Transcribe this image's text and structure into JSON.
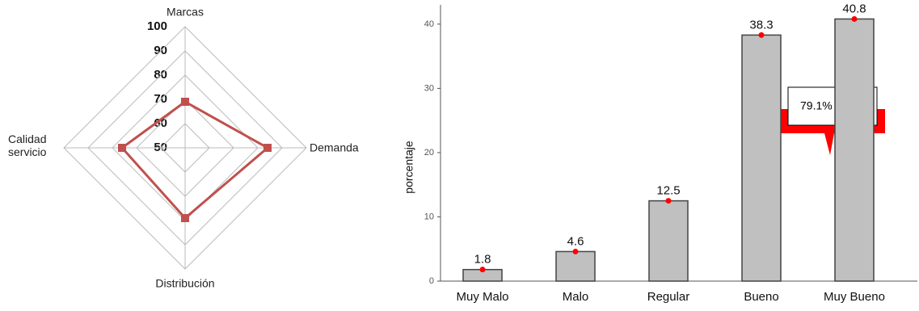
{
  "chart_data": [
    {
      "type": "radar",
      "categories": [
        "Marcas",
        "Demanda",
        "Distribución",
        "Calidad servicio"
      ],
      "values": [
        69,
        84,
        79,
        76
      ],
      "color": "#c0504d",
      "rlim": [
        50,
        100
      ],
      "rticks": [
        50,
        60,
        70,
        80,
        90,
        100
      ]
    },
    {
      "type": "bar",
      "categories": [
        "Muy Malo",
        "Malo",
        "Regular",
        "Bueno",
        "Muy Bueno"
      ],
      "values": [
        1.8,
        4.6,
        12.5,
        38.3,
        40.8
      ],
      "color": "#c0c0c0",
      "marker_color": "#ff0000",
      "ylabel": "porcentaje",
      "ylim": [
        0,
        43
      ],
      "yticks": [
        0,
        10,
        20,
        30,
        40
      ],
      "annotations": [
        "79.1%"
      ]
    }
  ]
}
